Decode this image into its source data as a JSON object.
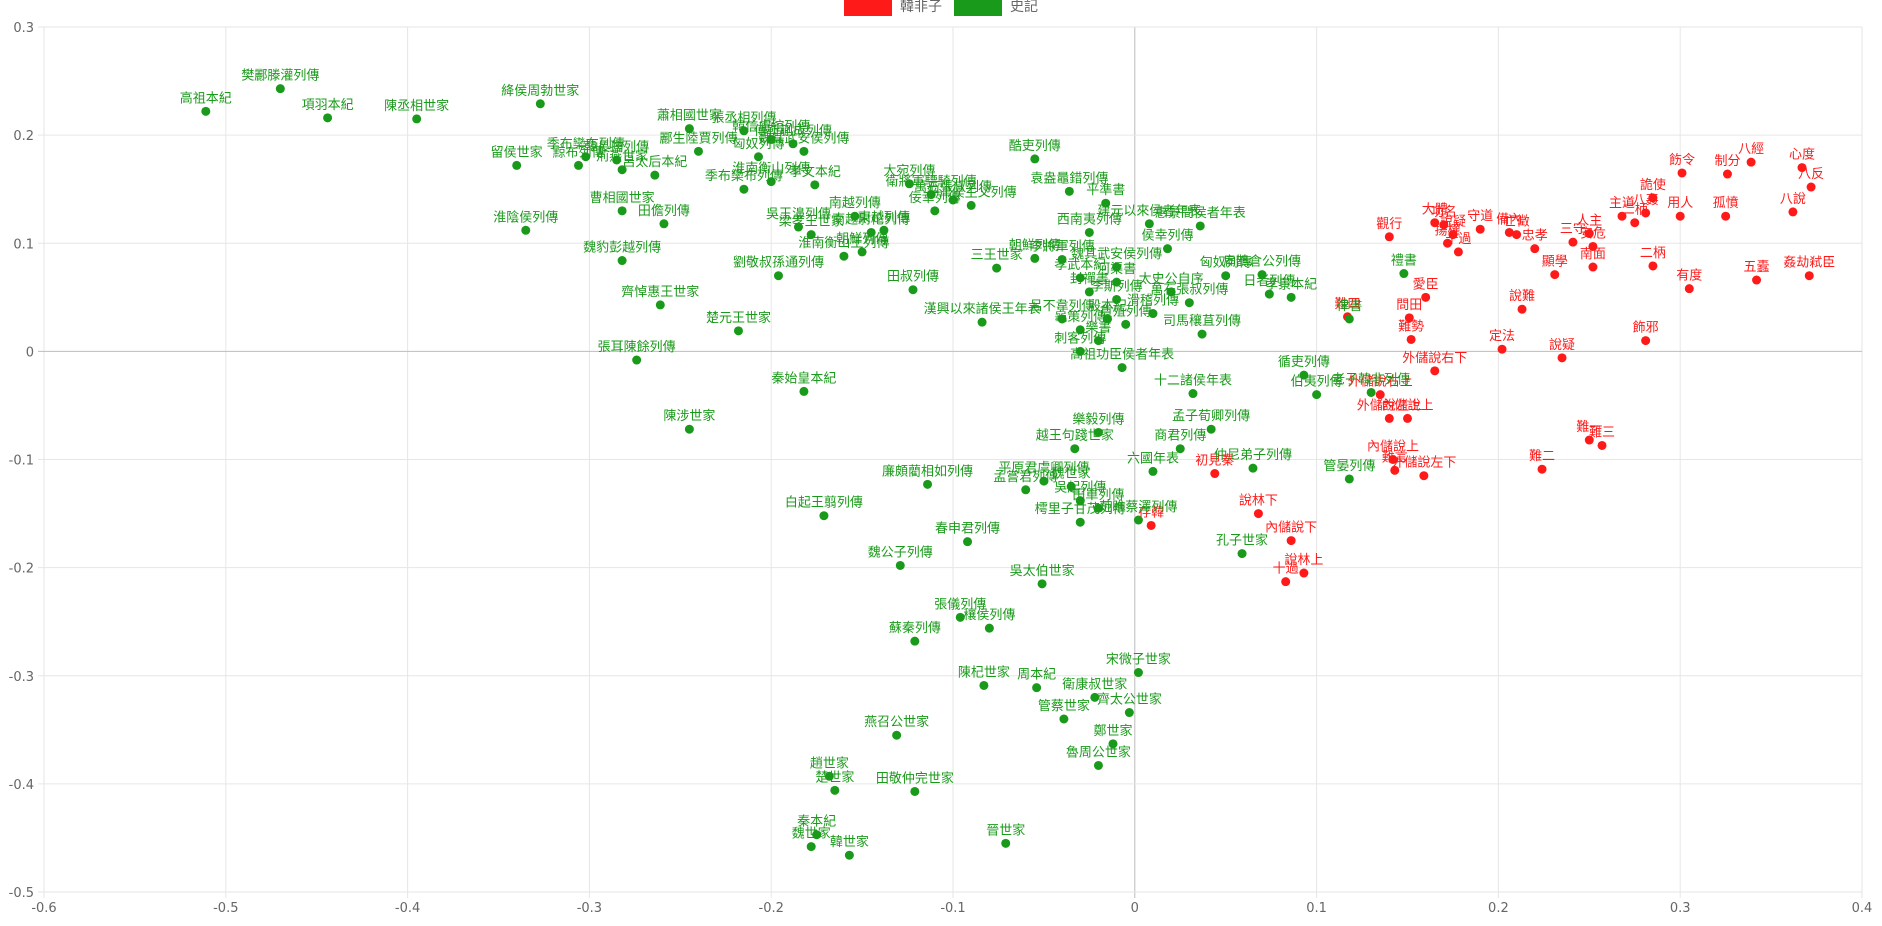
{
  "chart_data": {
    "type": "scatter",
    "xlim": [
      -0.6,
      0.4
    ],
    "ylim": [
      -0.5,
      0.3
    ],
    "x_ticks": [
      -0.6,
      -0.5,
      -0.4,
      -0.3,
      -0.2,
      -0.1,
      0,
      0.1,
      0.2,
      0.3,
      0.4
    ],
    "y_ticks": [
      0.3,
      0.2,
      0.1,
      0,
      -0.1,
      -0.2,
      -0.3,
      -0.4,
      -0.5
    ],
    "x_tick_labels": [
      "-0.6",
      "-0.5",
      "-0.4",
      "-0.3",
      "-0.2",
      "-0.1",
      "0",
      "0.1",
      "0.2",
      "0.3",
      "0.4"
    ],
    "y_tick_labels": [
      "0.3",
      "0.2",
      "0.1",
      "0",
      "-0.1",
      "-0.2",
      "-0.3",
      "-0.4",
      "-0.5"
    ],
    "grid": true,
    "legend_position": "top-center",
    "series": [
      {
        "name": "韓非子",
        "color": "#ff1a1a",
        "points": [
          {
            "label": "心度",
            "x": 0.367,
            "y": 0.17
          },
          {
            "label": "八經",
            "x": 0.339,
            "y": 0.175
          },
          {
            "label": "八反",
            "x": 0.372,
            "y": 0.152
          },
          {
            "label": "飭令",
            "x": 0.301,
            "y": 0.165
          },
          {
            "label": "制分",
            "x": 0.326,
            "y": 0.164
          },
          {
            "label": "詭使",
            "x": 0.285,
            "y": 0.142
          },
          {
            "label": "八說",
            "x": 0.362,
            "y": 0.129
          },
          {
            "label": "用人",
            "x": 0.3,
            "y": 0.125
          },
          {
            "label": "孤憤",
            "x": 0.325,
            "y": 0.125
          },
          {
            "label": "主道",
            "x": 0.268,
            "y": 0.125
          },
          {
            "label": "八姦",
            "x": 0.281,
            "y": 0.128
          },
          {
            "label": "人主",
            "x": 0.25,
            "y": 0.109
          },
          {
            "label": "安危",
            "x": 0.252,
            "y": 0.097
          },
          {
            "label": "二柄",
            "x": 0.285,
            "y": 0.079
          },
          {
            "label": "南面",
            "x": 0.252,
            "y": 0.078
          },
          {
            "label": "三守",
            "x": 0.241,
            "y": 0.101
          },
          {
            "label": "二柄",
            "x": 0.275,
            "y": 0.119
          },
          {
            "label": "守道",
            "x": 0.19,
            "y": 0.113
          },
          {
            "label": "功名",
            "x": 0.17,
            "y": 0.117
          },
          {
            "label": "大體",
            "x": 0.165,
            "y": 0.119
          },
          {
            "label": "說疑",
            "x": 0.175,
            "y": 0.108
          },
          {
            "label": "有度",
            "x": 0.305,
            "y": 0.058
          },
          {
            "label": "五蠹",
            "x": 0.342,
            "y": 0.066
          },
          {
            "label": "姦劫弒臣",
            "x": 0.371,
            "y": 0.07
          },
          {
            "label": "觀行",
            "x": 0.14,
            "y": 0.106
          },
          {
            "label": "備內",
            "x": 0.206,
            "y": 0.11
          },
          {
            "label": "亡徵",
            "x": 0.21,
            "y": 0.108
          },
          {
            "label": "十過",
            "x": 0.178,
            "y": 0.092
          },
          {
            "label": "揚權",
            "x": 0.172,
            "y": 0.1
          },
          {
            "label": "忠孝",
            "x": 0.22,
            "y": 0.095
          },
          {
            "label": "顯學",
            "x": 0.231,
            "y": 0.071
          },
          {
            "label": "說難",
            "x": 0.213,
            "y": 0.039
          },
          {
            "label": "愛臣",
            "x": 0.16,
            "y": 0.05
          },
          {
            "label": "問田",
            "x": 0.151,
            "y": 0.031
          },
          {
            "label": "難四",
            "x": 0.117,
            "y": 0.032
          },
          {
            "label": "難勢",
            "x": 0.152,
            "y": 0.011
          },
          {
            "label": "定法",
            "x": 0.202,
            "y": 0.002
          },
          {
            "label": "說疑",
            "x": 0.235,
            "y": -0.006
          },
          {
            "label": "飾邪",
            "x": 0.281,
            "y": 0.01
          },
          {
            "label": "外儲說右下",
            "x": 0.165,
            "y": -0.018
          },
          {
            "label": "外儲說右上",
            "x": 0.135,
            "y": -0.04
          },
          {
            "label": "外儲說左上",
            "x": 0.14,
            "y": -0.062
          },
          {
            "label": "內儲說上",
            "x": 0.15,
            "y": -0.062
          },
          {
            "label": "難三",
            "x": 0.257,
            "y": -0.087
          },
          {
            "label": "難一",
            "x": 0.25,
            "y": -0.082
          },
          {
            "label": "內儲說上",
            "x": 0.142,
            "y": -0.1
          },
          {
            "label": "難二",
            "x": 0.224,
            "y": -0.109
          },
          {
            "label": "外儲說左下",
            "x": 0.159,
            "y": -0.115
          },
          {
            "label": "難言",
            "x": 0.143,
            "y": -0.11
          },
          {
            "label": "初見秦",
            "x": 0.044,
            "y": -0.113
          },
          {
            "label": "說林下",
            "x": 0.068,
            "y": -0.15
          },
          {
            "label": "存韓",
            "x": 0.009,
            "y": -0.161
          },
          {
            "label": "內儲說下",
            "x": 0.086,
            "y": -0.175
          },
          {
            "label": "說林上",
            "x": 0.093,
            "y": -0.205
          },
          {
            "label": "十過",
            "x": 0.083,
            "y": -0.213
          }
        ]
      },
      {
        "name": "史記",
        "color": "#1a9a1a",
        "points": [
          {
            "label": "樊酈滕灌列傳",
            "x": -0.47,
            "y": 0.243
          },
          {
            "label": "高祖本紀",
            "x": -0.511,
            "y": 0.222
          },
          {
            "label": "項羽本紀",
            "x": -0.444,
            "y": 0.216
          },
          {
            "label": "陳丞相世家",
            "x": -0.395,
            "y": 0.215
          },
          {
            "label": "絳侯周勃世家",
            "x": -0.327,
            "y": 0.229
          },
          {
            "label": "蕭相國世家",
            "x": -0.245,
            "y": 0.206
          },
          {
            "label": "張丞相列傳",
            "x": -0.215,
            "y": 0.204
          },
          {
            "label": "酈生陸賈列傳",
            "x": -0.24,
            "y": 0.185
          },
          {
            "label": "韓信盧綰列傳",
            "x": -0.2,
            "y": 0.196
          },
          {
            "label": "傅靳蒯成列傳",
            "x": -0.188,
            "y": 0.192
          },
          {
            "label": "魏其武安侯列傳",
            "x": -0.182,
            "y": 0.185
          },
          {
            "label": "留侯世家",
            "x": -0.34,
            "y": 0.172
          },
          {
            "label": "黥布列傳",
            "x": -0.306,
            "y": 0.172
          },
          {
            "label": "季布欒布列傳",
            "x": -0.302,
            "y": 0.18
          },
          {
            "label": "韓長孺列傳",
            "x": -0.285,
            "y": 0.177
          },
          {
            "label": "荊燕世家",
            "x": -0.282,
            "y": 0.168
          },
          {
            "label": "呂太后本紀",
            "x": -0.264,
            "y": 0.163
          },
          {
            "label": "曹相國世家",
            "x": -0.282,
            "y": 0.13
          },
          {
            "label": "田儋列傳",
            "x": -0.259,
            "y": 0.118
          },
          {
            "label": "淮陰侯列傳",
            "x": -0.335,
            "y": 0.112
          },
          {
            "label": "魏豹彭越列傳",
            "x": -0.282,
            "y": 0.084
          },
          {
            "label": "齊悼惠王世家",
            "x": -0.261,
            "y": 0.043
          },
          {
            "label": "楚元王世家",
            "x": -0.218,
            "y": 0.019
          },
          {
            "label": "張耳陳餘列傳",
            "x": -0.274,
            "y": -0.008
          },
          {
            "label": "陳涉世家",
            "x": -0.245,
            "y": -0.072
          },
          {
            "label": "秦始皇本紀",
            "x": -0.182,
            "y": -0.037
          },
          {
            "label": "匈奴列傳",
            "x": -0.207,
            "y": 0.18
          },
          {
            "label": "孝文本紀",
            "x": -0.176,
            "y": 0.154
          },
          {
            "label": "季布欒布列傳",
            "x": -0.215,
            "y": 0.15
          },
          {
            "label": "淮南衡山列傳",
            "x": -0.2,
            "y": 0.157
          },
          {
            "label": "吳王濞列傳",
            "x": -0.185,
            "y": 0.115
          },
          {
            "label": "梁孝王世家",
            "x": -0.178,
            "y": 0.108
          },
          {
            "label": "南越列傳",
            "x": -0.154,
            "y": 0.125
          },
          {
            "label": "東越列傳",
            "x": -0.138,
            "y": 0.112
          },
          {
            "label": "大宛列傳",
            "x": -0.124,
            "y": 0.155
          },
          {
            "label": "衛將軍驃騎列傳",
            "x": -0.112,
            "y": 0.145
          },
          {
            "label": "萬石張叔列傳",
            "x": -0.1,
            "y": 0.14
          },
          {
            "label": "平津侯主父列傳",
            "x": -0.09,
            "y": 0.135
          },
          {
            "label": "佞幸列傳",
            "x": -0.11,
            "y": 0.13
          },
          {
            "label": "酷吏列傳",
            "x": -0.055,
            "y": 0.178
          },
          {
            "label": "袁盎鼂錯列傳",
            "x": -0.036,
            "y": 0.148
          },
          {
            "label": "平準書",
            "x": -0.016,
            "y": 0.137
          },
          {
            "label": "南越尉佗列傳",
            "x": -0.145,
            "y": 0.11
          },
          {
            "label": "朝鮮列傳",
            "x": -0.15,
            "y": 0.092
          },
          {
            "label": "西南夷列傳",
            "x": -0.025,
            "y": 0.11
          },
          {
            "label": "淮南衡山王列傳",
            "x": -0.16,
            "y": 0.088
          },
          {
            "label": "劉敬叔孫通列傳",
            "x": -0.196,
            "y": 0.07
          },
          {
            "label": "田叔列傳",
            "x": -0.122,
            "y": 0.057
          },
          {
            "label": "漢興以來諸侯王年表",
            "x": -0.084,
            "y": 0.027
          },
          {
            "label": "三王世家",
            "x": -0.076,
            "y": 0.077
          },
          {
            "label": "朝鮮列傳",
            "x": -0.055,
            "y": 0.086
          },
          {
            "label": "建元以來侯者年表",
            "x": 0.008,
            "y": 0.118
          },
          {
            "label": "惠景間侯者年表",
            "x": 0.036,
            "y": 0.116
          },
          {
            "label": "侯幸列傳",
            "x": 0.018,
            "y": 0.095
          },
          {
            "label": "李將軍列傳",
            "x": -0.04,
            "y": 0.085
          },
          {
            "label": "魏其武安侯列傳",
            "x": -0.01,
            "y": 0.078
          },
          {
            "label": "孝武本紀",
            "x": -0.03,
            "y": 0.068
          },
          {
            "label": "河渠書",
            "x": -0.01,
            "y": 0.064
          },
          {
            "label": "扁鵲倉公列傳",
            "x": 0.07,
            "y": 0.071
          },
          {
            "label": "匈奴列傳",
            "x": 0.05,
            "y": 0.07
          },
          {
            "label": "孝景本紀",
            "x": 0.086,
            "y": 0.05
          },
          {
            "label": "日者列傳",
            "x": 0.074,
            "y": 0.053
          },
          {
            "label": "封禪書",
            "x": -0.025,
            "y": 0.055
          },
          {
            "label": "李斯列傳",
            "x": -0.01,
            "y": 0.048
          },
          {
            "label": "太史公自序",
            "x": 0.02,
            "y": 0.055
          },
          {
            "label": "萬石張叔列傳",
            "x": 0.03,
            "y": 0.045
          },
          {
            "label": "司馬穰苴列傳",
            "x": 0.037,
            "y": 0.016
          },
          {
            "label": "呂不韋列傳",
            "x": -0.04,
            "y": 0.03
          },
          {
            "label": "龜策列傳",
            "x": -0.03,
            "y": 0.02
          },
          {
            "label": "滑稽列傳",
            "x": 0.01,
            "y": 0.035
          },
          {
            "label": "貨殖列傳",
            "x": -0.005,
            "y": 0.025
          },
          {
            "label": "樂書",
            "x": -0.02,
            "y": 0.01
          },
          {
            "label": "殷本紀",
            "x": -0.015,
            "y": 0.03
          },
          {
            "label": "刺客列傳",
            "x": -0.03,
            "y": 0.0
          },
          {
            "label": "高祖功臣侯者年表",
            "x": -0.007,
            "y": -0.015
          },
          {
            "label": "十二諸侯年表",
            "x": 0.032,
            "y": -0.039
          },
          {
            "label": "循吏列傳",
            "x": 0.093,
            "y": -0.022
          },
          {
            "label": "伯夷列傳",
            "x": 0.1,
            "y": -0.04
          },
          {
            "label": "老子韓非列傳",
            "x": 0.13,
            "y": -0.038
          },
          {
            "label": "禮書",
            "x": 0.148,
            "y": 0.072
          },
          {
            "label": "律書",
            "x": 0.118,
            "y": 0.03
          },
          {
            "label": "孟子荀卿列傳",
            "x": 0.042,
            "y": -0.072
          },
          {
            "label": "商君列傳",
            "x": 0.025,
            "y": -0.09
          },
          {
            "label": "樂毅列傳",
            "x": -0.02,
            "y": -0.075
          },
          {
            "label": "越王句踐世家",
            "x": -0.033,
            "y": -0.09
          },
          {
            "label": "六國年表",
            "x": 0.01,
            "y": -0.111
          },
          {
            "label": "仲尼弟子列傳",
            "x": 0.065,
            "y": -0.108
          },
          {
            "label": "管晏列傳",
            "x": 0.118,
            "y": -0.118
          },
          {
            "label": "平原君虞卿列傳",
            "x": -0.05,
            "y": -0.12
          },
          {
            "label": "魏世家",
            "x": -0.035,
            "y": -0.125
          },
          {
            "label": "孟嘗君列傳",
            "x": -0.06,
            "y": -0.128
          },
          {
            "label": "吳起列傳",
            "x": -0.03,
            "y": -0.138
          },
          {
            "label": "田單列傳",
            "x": -0.02,
            "y": -0.145
          },
          {
            "label": "樗里子甘茂列傳",
            "x": -0.03,
            "y": -0.158
          },
          {
            "label": "范睢蔡澤列傳",
            "x": 0.002,
            "y": -0.156
          },
          {
            "label": "廉頗藺相如列傳",
            "x": -0.114,
            "y": -0.123
          },
          {
            "label": "白起王翦列傳",
            "x": -0.171,
            "y": -0.152
          },
          {
            "label": "春申君列傳",
            "x": -0.092,
            "y": -0.176
          },
          {
            "label": "魏公子列傳",
            "x": -0.129,
            "y": -0.198
          },
          {
            "label": "孔子世家",
            "x": 0.059,
            "y": -0.187
          },
          {
            "label": "吳太伯世家",
            "x": -0.051,
            "y": -0.215
          },
          {
            "label": "張儀列傳",
            "x": -0.096,
            "y": -0.246
          },
          {
            "label": "穰侯列傳",
            "x": -0.08,
            "y": -0.256
          },
          {
            "label": "蘇秦列傳",
            "x": -0.121,
            "y": -0.268
          },
          {
            "label": "宋微子世家",
            "x": 0.002,
            "y": -0.297
          },
          {
            "label": "陳杞世家",
            "x": -0.083,
            "y": -0.309
          },
          {
            "label": "周本紀",
            "x": -0.054,
            "y": -0.311
          },
          {
            "label": "衛康叔世家",
            "x": -0.022,
            "y": -0.32
          },
          {
            "label": "齊太公世家",
            "x": -0.003,
            "y": -0.334
          },
          {
            "label": "管蔡世家",
            "x": -0.039,
            "y": -0.34
          },
          {
            "label": "鄭世家",
            "x": -0.012,
            "y": -0.363
          },
          {
            "label": "魯周公世家",
            "x": -0.02,
            "y": -0.383
          },
          {
            "label": "燕召公世家",
            "x": -0.131,
            "y": -0.355
          },
          {
            "label": "趙世家",
            "x": -0.168,
            "y": -0.393
          },
          {
            "label": "楚世家",
            "x": -0.165,
            "y": -0.406
          },
          {
            "label": "田敬仲完世家",
            "x": -0.121,
            "y": -0.407
          },
          {
            "label": "晉世家",
            "x": -0.071,
            "y": -0.455
          },
          {
            "label": "秦本紀",
            "x": -0.175,
            "y": -0.447
          },
          {
            "label": "魏世家",
            "x": -0.178,
            "y": -0.458
          },
          {
            "label": "韓世家",
            "x": -0.157,
            "y": -0.466
          }
        ]
      }
    ]
  }
}
